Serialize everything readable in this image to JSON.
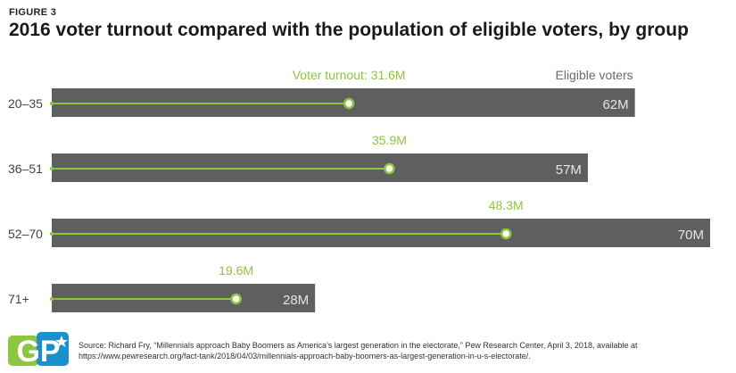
{
  "figure_label": "FIGURE 3",
  "source": "Source: Richard Fry, “Millennials approach Baby Boomers as America’s largest generation in the electorate,” Pew Research Center, April 3, 2018, available at https://www.pewresearch.org/fact-tank/2018/04/03/millennials-approach-baby-boomers-as-largest-generation-in-u-s-electorate/.",
  "logo": {
    "text": "GP",
    "icon": "star-icon"
  },
  "colors": {
    "bar": "#5f5f5f",
    "turnout": "#8dc63f",
    "label_gray": "#6b6b6b",
    "bar_text": "#e4e4e4"
  },
  "chart_data": {
    "type": "bar",
    "title": "2016 voter turnout compared with the population of eligible voters, by group",
    "categories": [
      "20–35",
      "36–51",
      "52–70",
      "71+"
    ],
    "series": [
      {
        "name": "Eligible voters",
        "values": [
          62,
          57,
          70,
          28
        ],
        "labels": [
          "62M",
          "57M",
          "70M",
          "28M"
        ]
      },
      {
        "name": "Voter turnout",
        "values": [
          31.6,
          35.9,
          48.3,
          19.6
        ],
        "labels": [
          "Voter turnout: 31.6M",
          "35.9M",
          "48.3M",
          "19.6M"
        ]
      }
    ],
    "xlim": [
      0,
      70
    ],
    "grid": false,
    "orientation": "horizontal"
  }
}
